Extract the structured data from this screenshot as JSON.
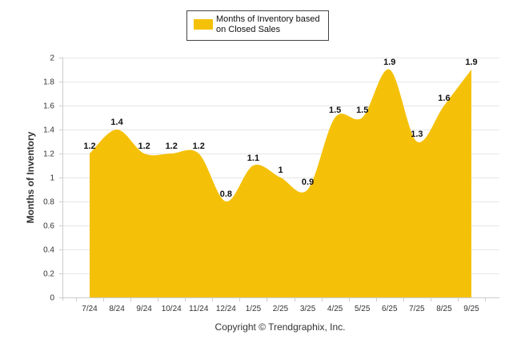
{
  "chart_data": {
    "type": "area",
    "categories": [
      "7/24",
      "8/24",
      "9/24",
      "10/24",
      "11/24",
      "12/24",
      "1/25",
      "2/25",
      "3/25",
      "4/25",
      "5/25",
      "6/25",
      "7/25",
      "8/25",
      "9/25"
    ],
    "series": [
      {
        "name": "Months of Inventory based on Closed Sales",
        "values": [
          1.2,
          1.4,
          1.2,
          1.2,
          1.2,
          0.8,
          1.1,
          1.0,
          0.9,
          1.5,
          1.5,
          1.9,
          1.3,
          1.6,
          1.9
        ],
        "labels": [
          "1.2",
          "1.4",
          "1.2",
          "1.2",
          "1.2",
          "0.8",
          "1.1",
          "1",
          "0.9",
          "1.5",
          "1.5",
          "1.9",
          "1.3",
          "1.6",
          "1.9"
        ],
        "color": "#F5C108"
      }
    ],
    "yticks": [
      "0",
      "0.2",
      "0.4",
      "0.6",
      "0.8",
      "1",
      "1.2",
      "1.4",
      "1.6",
      "1.8",
      "2"
    ],
    "ylim": [
      0,
      2
    ],
    "ylabel": "Months of Inventory",
    "xlabel": "",
    "legend": {
      "line1": "Months of Inventory based",
      "line2": "on Closed Sales",
      "position": "top-center"
    },
    "grid": true,
    "footer": "Copyright © Trendgraphix, Inc."
  }
}
